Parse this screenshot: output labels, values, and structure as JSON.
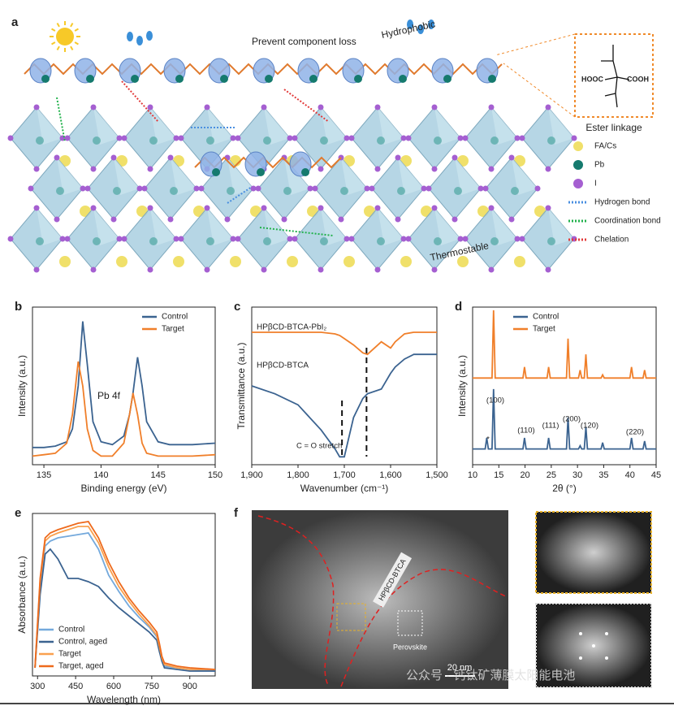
{
  "diagram": {
    "panel": "a",
    "annotations": [
      "Prevent component loss",
      "Hydrophobic",
      "Thermostable"
    ],
    "inset": {
      "title": "Ester linkage",
      "groups": [
        "HOOC",
        "COOH"
      ]
    },
    "legend": [
      "FA/Cs",
      "Pb",
      "I",
      "Hydrogen bond",
      "Coordination bond",
      "Chelation"
    ]
  },
  "chart_data": [
    {
      "type": "line",
      "panel": "b",
      "xlabel": "Binding energy (eV)",
      "ylabel": "Intensity (a.u.)",
      "xlim": [
        134,
        150
      ],
      "ylim": [
        0,
        1.1
      ],
      "xticks": [
        135,
        140,
        145,
        150
      ],
      "legend": "upper right",
      "annotations": [
        "Pb 4f"
      ],
      "x": [
        134,
        135,
        136,
        137,
        137.5,
        138,
        138.4,
        138.8,
        139.3,
        140,
        141,
        142,
        142.5,
        142.8,
        143.2,
        143.6,
        144,
        145,
        146,
        148,
        150
      ],
      "series": [
        {
          "name": "Control",
          "color": "#3b6390",
          "values": [
            0.12,
            0.12,
            0.13,
            0.16,
            0.25,
            0.55,
            1.0,
            0.7,
            0.3,
            0.16,
            0.14,
            0.2,
            0.35,
            0.5,
            0.75,
            0.55,
            0.3,
            0.16,
            0.14,
            0.14,
            0.15
          ]
        },
        {
          "name": "Target",
          "color": "#f07f2a",
          "values": [
            0.06,
            0.07,
            0.08,
            0.15,
            0.35,
            0.72,
            0.55,
            0.25,
            0.1,
            0.06,
            0.06,
            0.15,
            0.35,
            0.5,
            0.35,
            0.15,
            0.08,
            0.06,
            0.06,
            0.06,
            0.07
          ]
        }
      ]
    },
    {
      "type": "line",
      "panel": "c",
      "xlabel": "Wavenumber (cm⁻¹)",
      "ylabel": "Transmittance (a.u.)",
      "xlim": [
        1900,
        1500
      ],
      "ylim": [
        0,
        1
      ],
      "xticks": [
        {
          "value": 1900,
          "label": "1,900"
        },
        {
          "value": 1800,
          "label": "1,800"
        },
        {
          "value": 1700,
          "label": "1,700"
        },
        {
          "value": 1600,
          "label": "1,600"
        },
        {
          "value": 1500,
          "label": "1,500"
        }
      ],
      "legend": "inline",
      "annotations": [
        "C = O stretch"
      ],
      "markers": [
        1705,
        1652
      ],
      "x": [
        1900,
        1850,
        1800,
        1750,
        1720,
        1710,
        1700,
        1680,
        1660,
        1650,
        1620,
        1600,
        1590,
        1570,
        1550,
        1500
      ],
      "series": [
        {
          "name": "HPβCD-BTCA-PbI₂",
          "color": "#f07f2a",
          "values": [
            0.84,
            0.84,
            0.84,
            0.84,
            0.83,
            0.82,
            0.8,
            0.76,
            0.71,
            0.7,
            0.78,
            0.74,
            0.78,
            0.83,
            0.84,
            0.84
          ]
        },
        {
          "name": "HPβCD-BTCA",
          "color": "#3b6390",
          "values": [
            0.5,
            0.45,
            0.38,
            0.22,
            0.1,
            0.05,
            0.05,
            0.3,
            0.42,
            0.45,
            0.48,
            0.58,
            0.62,
            0.67,
            0.7,
            0.7
          ]
        }
      ]
    },
    {
      "type": "line",
      "panel": "d",
      "xlabel": "2θ (°)",
      "ylabel": "Intensity (a.u.)",
      "xlim": [
        10,
        45
      ],
      "ylim": [
        0,
        1
      ],
      "xticks": [
        10,
        15,
        20,
        25,
        30,
        35,
        40,
        45
      ],
      "legend": "upper right",
      "annotations": [
        "*",
        "(100)",
        "(110)",
        "(111)",
        "(200)",
        "(120)",
        "(220)"
      ],
      "x": [
        10,
        12.4,
        12.7,
        13.0,
        13.7,
        14.0,
        14.3,
        19.6,
        19.9,
        20.2,
        24.2,
        24.5,
        24.8,
        27.9,
        28.2,
        28.5,
        30.2,
        30.5,
        30.8,
        31.3,
        31.6,
        31.9,
        34.5,
        34.8,
        35.1,
        40.0,
        40.3,
        40.6,
        42.5,
        42.8,
        43.1,
        45
      ],
      "series": [
        {
          "name": "Control",
          "color": "#3b6390",
          "values": [
            0.1,
            0.1,
            0.17,
            0.1,
            0.1,
            0.48,
            0.1,
            0.1,
            0.17,
            0.1,
            0.1,
            0.17,
            0.1,
            0.1,
            0.3,
            0.1,
            0.1,
            0.12,
            0.1,
            0.1,
            0.24,
            0.1,
            0.1,
            0.14,
            0.1,
            0.1,
            0.17,
            0.1,
            0.1,
            0.15,
            0.1,
            0.1
          ]
        },
        {
          "name": "Target",
          "color": "#f07f2a",
          "values": [
            0.55,
            0.55,
            0.55,
            0.55,
            0.55,
            0.98,
            0.55,
            0.55,
            0.62,
            0.55,
            0.55,
            0.62,
            0.55,
            0.55,
            0.8,
            0.55,
            0.55,
            0.6,
            0.55,
            0.55,
            0.7,
            0.55,
            0.55,
            0.57,
            0.55,
            0.55,
            0.62,
            0.55,
            0.55,
            0.6,
            0.55,
            0.55
          ]
        }
      ]
    },
    {
      "type": "line",
      "panel": "e",
      "xlabel": "Wavelength (nm)",
      "ylabel": "Absorbance (a.u.)",
      "xlim": [
        280,
        1000
      ],
      "ylim": [
        0,
        1
      ],
      "xticks": [
        300,
        450,
        600,
        750,
        900
      ],
      "legend": "lower left",
      "x": [
        290,
        310,
        330,
        350,
        380,
        420,
        460,
        500,
        540,
        580,
        620,
        660,
        700,
        740,
        770,
        780,
        790,
        800,
        850,
        900,
        1000
      ],
      "series": [
        {
          "name": "Control",
          "color": "#74a9dc",
          "values": [
            0.05,
            0.55,
            0.8,
            0.83,
            0.85,
            0.86,
            0.87,
            0.88,
            0.78,
            0.62,
            0.52,
            0.43,
            0.36,
            0.3,
            0.24,
            0.17,
            0.1,
            0.06,
            0.05,
            0.04,
            0.03
          ]
        },
        {
          "name": "Control, aged",
          "color": "#3b6390",
          "values": [
            0.05,
            0.5,
            0.75,
            0.78,
            0.72,
            0.6,
            0.6,
            0.58,
            0.55,
            0.48,
            0.42,
            0.37,
            0.32,
            0.27,
            0.22,
            0.15,
            0.09,
            0.05,
            0.04,
            0.03,
            0.03
          ]
        },
        {
          "name": "Target",
          "color": "#f9a04e",
          "values": [
            0.05,
            0.58,
            0.83,
            0.86,
            0.88,
            0.9,
            0.92,
            0.92,
            0.82,
            0.67,
            0.55,
            0.46,
            0.38,
            0.31,
            0.25,
            0.18,
            0.11,
            0.07,
            0.05,
            0.04,
            0.04
          ]
        },
        {
          "name": "Target, aged",
          "color": "#ee6a1c",
          "values": [
            0.05,
            0.6,
            0.85,
            0.88,
            0.9,
            0.92,
            0.94,
            0.95,
            0.85,
            0.7,
            0.58,
            0.48,
            0.4,
            0.33,
            0.27,
            0.2,
            0.12,
            0.08,
            0.06,
            0.05,
            0.04
          ]
        }
      ]
    }
  ],
  "images": {
    "panel": "f",
    "annotations": [
      "HPβCD-BTCA",
      "Perovskite"
    ],
    "scale_bar": "20 nm",
    "watermark": "公众号 · 钙钛矿薄膜太阳能电池"
  }
}
